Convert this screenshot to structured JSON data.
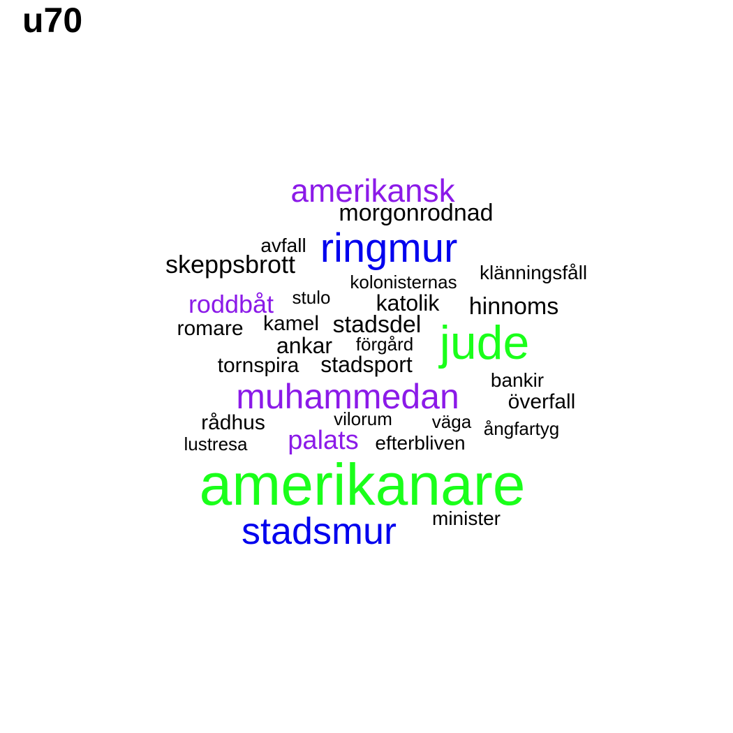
{
  "title": "u70",
  "colors": {
    "black": "#000000",
    "purple": "#8b1ae8",
    "blue": "#0000ee",
    "green": "#1aff1a"
  },
  "words": [
    {
      "text": "amerikansk",
      "color": "purple"
    },
    {
      "text": "morgonrodnad",
      "color": "black"
    },
    {
      "text": "avfall",
      "color": "black"
    },
    {
      "text": "ringmur",
      "color": "blue"
    },
    {
      "text": "skeppsbrott",
      "color": "black"
    },
    {
      "text": "klänningsfåll",
      "color": "black"
    },
    {
      "text": "kolonisternas",
      "color": "black"
    },
    {
      "text": "stulo",
      "color": "black"
    },
    {
      "text": "roddbåt",
      "color": "purple"
    },
    {
      "text": "katolik",
      "color": "black"
    },
    {
      "text": "hinnoms",
      "color": "black"
    },
    {
      "text": "romare",
      "color": "black"
    },
    {
      "text": "kamel",
      "color": "black"
    },
    {
      "text": "stadsdel",
      "color": "black"
    },
    {
      "text": "jude",
      "color": "green"
    },
    {
      "text": "ankar",
      "color": "black"
    },
    {
      "text": "förgård",
      "color": "black"
    },
    {
      "text": "tornspira",
      "color": "black"
    },
    {
      "text": "stadsport",
      "color": "black"
    },
    {
      "text": "bankir",
      "color": "black"
    },
    {
      "text": "muhammedan",
      "color": "purple"
    },
    {
      "text": "överfall",
      "color": "black"
    },
    {
      "text": "rådhus",
      "color": "black"
    },
    {
      "text": "vilorum",
      "color": "black"
    },
    {
      "text": "väga",
      "color": "black"
    },
    {
      "text": "ångfartyg",
      "color": "black"
    },
    {
      "text": "lustresa",
      "color": "black"
    },
    {
      "text": "palats",
      "color": "purple"
    },
    {
      "text": "efterbliven",
      "color": "black"
    },
    {
      "text": "amerikanare",
      "color": "green"
    },
    {
      "text": "minister",
      "color": "black"
    },
    {
      "text": "stadsmur",
      "color": "blue"
    }
  ]
}
